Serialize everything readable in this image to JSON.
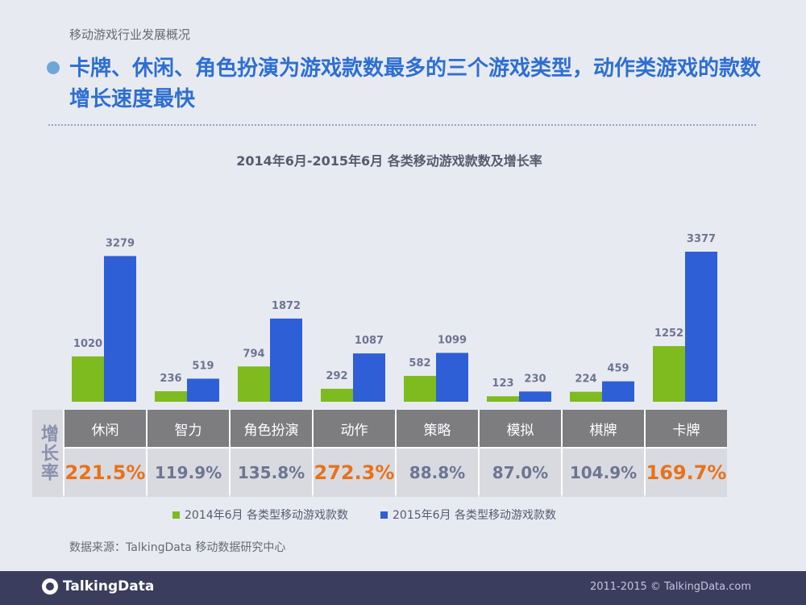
{
  "header": {
    "section": "移动游戏行业发展概况",
    "headline": "卡牌、休闲、角色扮演为游戏款数最多的三个游戏类型，动作类游戏的款数增长速度最快"
  },
  "colors": {
    "series_2014": "#7dbb1f",
    "series_2015": "#2f5fd6",
    "highlight_rate": "#e7721a",
    "headline": "#2d6fd3"
  },
  "chart_data": {
    "type": "bar",
    "title": "2014年6月-2015年6月 各类移动游戏款数及增长率",
    "categories": [
      "休闲",
      "智力",
      "角色扮演",
      "动作",
      "策略",
      "模拟",
      "棋牌",
      "卡牌"
    ],
    "series": [
      {
        "name": "2014年6月 各类型移动游戏款数",
        "values": [
          1020,
          236,
          794,
          292,
          582,
          123,
          224,
          1252
        ]
      },
      {
        "name": "2015年6月 各类型移动游戏款数",
        "values": [
          3279,
          519,
          1872,
          1087,
          1099,
          230,
          459,
          3377
        ]
      }
    ],
    "ylim": [
      0,
      3600
    ],
    "grid": false,
    "legend_position": "bottom"
  },
  "table": {
    "row_header": "增长率",
    "rates": [
      "221.5%",
      "119.9%",
      "135.8%",
      "272.3%",
      "88.8%",
      "87.0%",
      "104.9%",
      "169.7%"
    ],
    "highlighted": [
      true,
      false,
      false,
      true,
      false,
      false,
      false,
      true
    ]
  },
  "legend": {
    "item_2014": "2014年6月 各类型移动游戏款数",
    "item_2015": "2015年6月 各类型移动游戏款数"
  },
  "source": "数据来源：TalkingData 移动数据研究中心",
  "footer": {
    "logo_text": "TalkingData",
    "copyright": "2011-2015 © TalkingData.com"
  }
}
